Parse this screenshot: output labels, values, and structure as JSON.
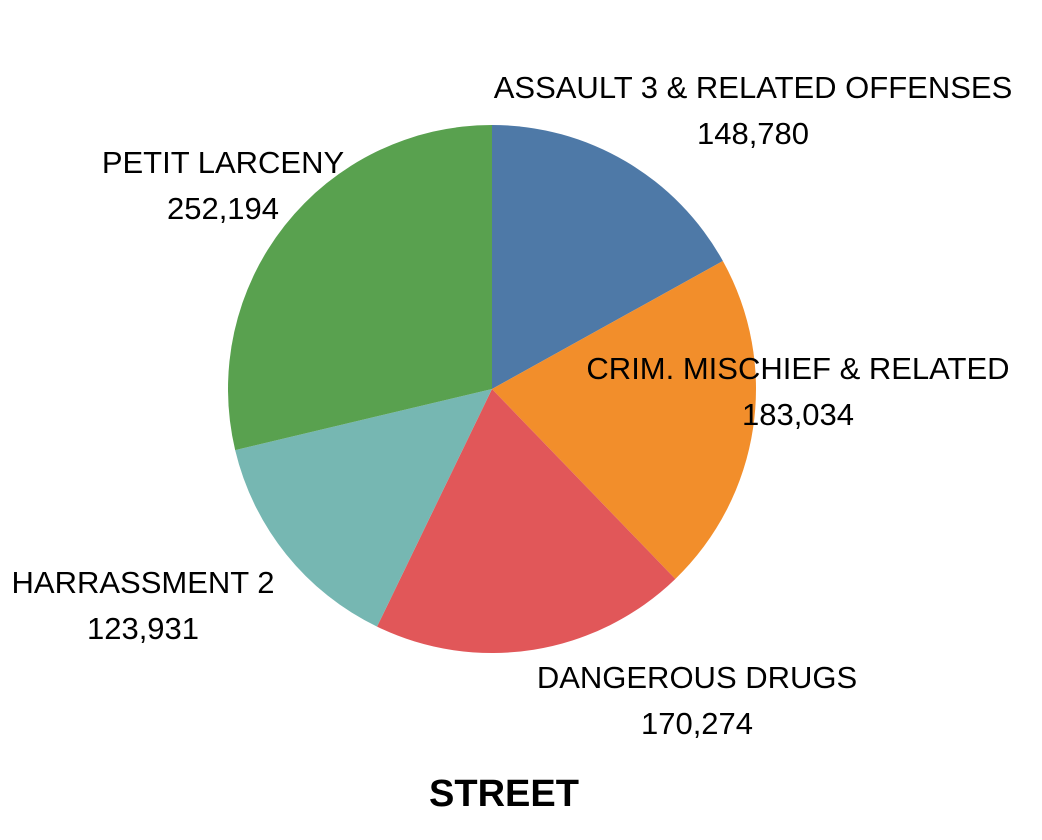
{
  "chart_data": {
    "type": "pie",
    "title": "STREET",
    "start_angle_deg": 0,
    "direction": "clockwise",
    "slices": [
      {
        "label": "ASSAULT 3 & RELATED OFFENSES",
        "value": 148780,
        "value_label": "148,780",
        "color": "#4e79a7"
      },
      {
        "label": "CRIM. MISCHIEF & RELATED",
        "value": 183034,
        "value_label": "183,034",
        "color": "#f28e2b"
      },
      {
        "label": "DANGEROUS DRUGS",
        "value": 170274,
        "value_label": "170,274",
        "color": "#e15759"
      },
      {
        "label": "HARRASSMENT 2",
        "value": 123931,
        "value_label": "123,931",
        "color": "#76b7b2"
      },
      {
        "label": "PETIT LARCENY",
        "value": 252194,
        "value_label": "252,194",
        "color": "#59a14f"
      }
    ]
  }
}
